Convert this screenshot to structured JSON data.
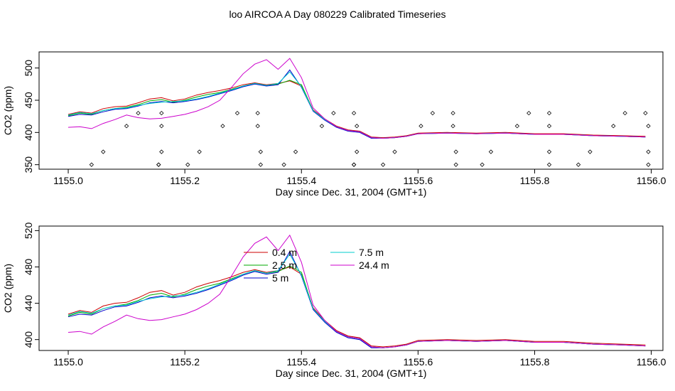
{
  "title": "loo AIRCOA A  Day 080229  Calibrated Timeseries",
  "chart_data": [
    {
      "type": "line",
      "xlabel": "Day since Dec. 31, 2004 (GMT+1)",
      "ylabel": "CO2 (ppm)",
      "xlim": [
        1154.95,
        1156.02
      ],
      "ylim": [
        343,
        525
      ],
      "xticks": [
        "1155.0",
        "1155.2",
        "1155.4",
        "1155.6",
        "1155.8",
        "1156.0"
      ],
      "yticks": [
        "350",
        "400",
        "450",
        "500"
      ],
      "series": [
        {
          "color": "#cc0000",
          "x": [
            1155.0,
            1155.02,
            1155.04,
            1155.06,
            1155.08,
            1155.1,
            1155.12,
            1155.14,
            1155.16,
            1155.18,
            1155.2,
            1155.22,
            1155.24,
            1155.26,
            1155.28,
            1155.3,
            1155.32,
            1155.34,
            1155.36,
            1155.38,
            1155.4,
            1155.42,
            1155.44,
            1155.46,
            1155.48,
            1155.5,
            1155.52,
            1155.54,
            1155.56,
            1155.58,
            1155.6,
            1155.65,
            1155.7,
            1155.75,
            1155.8,
            1155.85,
            1155.9,
            1155.95,
            1155.99
          ],
          "y": [
            428,
            432,
            430,
            437,
            440,
            441,
            446,
            452,
            454,
            449,
            452,
            458,
            462,
            465,
            469,
            474,
            477,
            474,
            476,
            480,
            472,
            435,
            421,
            410,
            404,
            402,
            393,
            392,
            393,
            395,
            399,
            400,
            399,
            400,
            398,
            398,
            396,
            395,
            394
          ]
        },
        {
          "color": "#00aa00",
          "x": [
            1155.0,
            1155.02,
            1155.04,
            1155.06,
            1155.08,
            1155.1,
            1155.12,
            1155.14,
            1155.16,
            1155.18,
            1155.2,
            1155.22,
            1155.24,
            1155.26,
            1155.28,
            1155.3,
            1155.32,
            1155.34,
            1155.36,
            1155.38,
            1155.4,
            1155.42,
            1155.44,
            1155.46,
            1155.48,
            1155.5,
            1155.52,
            1155.54,
            1155.56,
            1155.58,
            1155.6,
            1155.65,
            1155.7,
            1155.75,
            1155.8,
            1155.85,
            1155.9,
            1155.95,
            1155.99
          ],
          "y": [
            426,
            430,
            428,
            434,
            437,
            439,
            443,
            449,
            451,
            447,
            450,
            455,
            459,
            462,
            467,
            472,
            476,
            473,
            475,
            481,
            474,
            434,
            420,
            409,
            403,
            401,
            392,
            391,
            392,
            394,
            398,
            399,
            398,
            399,
            397,
            397,
            395,
            394,
            393
          ]
        },
        {
          "color": "#0000cc",
          "x": [
            1155.0,
            1155.02,
            1155.04,
            1155.06,
            1155.08,
            1155.1,
            1155.12,
            1155.14,
            1155.16,
            1155.18,
            1155.2,
            1155.22,
            1155.24,
            1155.26,
            1155.28,
            1155.3,
            1155.32,
            1155.34,
            1155.36,
            1155.38,
            1155.4,
            1155.42,
            1155.44,
            1155.46,
            1155.48,
            1155.5,
            1155.52,
            1155.54,
            1155.56,
            1155.58,
            1155.6,
            1155.65,
            1155.7,
            1155.75,
            1155.8,
            1155.85,
            1155.9,
            1155.95,
            1155.99
          ],
          "y": [
            425,
            428,
            427,
            432,
            436,
            437,
            441,
            446,
            448,
            446,
            448,
            451,
            455,
            460,
            465,
            471,
            475,
            472,
            474,
            497,
            470,
            433,
            419,
            408,
            402,
            400,
            391,
            391,
            392,
            394,
            398,
            399,
            398,
            399,
            397,
            397,
            395,
            394,
            393
          ]
        },
        {
          "color": "#00cccc",
          "x": [
            1155.0,
            1155.02,
            1155.04,
            1155.06,
            1155.08,
            1155.1,
            1155.12,
            1155.14,
            1155.16,
            1155.18,
            1155.2,
            1155.22,
            1155.24,
            1155.26,
            1155.28,
            1155.3,
            1155.32,
            1155.34,
            1155.36,
            1155.38,
            1155.4,
            1155.42,
            1155.44,
            1155.46,
            1155.48,
            1155.5,
            1155.52,
            1155.54,
            1155.56,
            1155.58,
            1155.6,
            1155.65,
            1155.7,
            1155.75,
            1155.8,
            1155.85,
            1155.9,
            1155.95,
            1155.99
          ],
          "y": [
            427,
            431,
            429,
            434,
            437,
            438,
            442,
            445,
            447,
            448,
            449,
            452,
            456,
            461,
            466,
            472,
            476,
            473,
            476,
            494,
            471,
            434,
            420,
            409,
            403,
            401,
            392,
            391,
            392,
            394,
            398,
            399,
            398,
            399,
            397,
            397,
            395,
            394,
            393
          ]
        },
        {
          "color": "#cc00cc",
          "x": [
            1155.0,
            1155.02,
            1155.04,
            1155.06,
            1155.08,
            1155.1,
            1155.12,
            1155.14,
            1155.16,
            1155.18,
            1155.2,
            1155.22,
            1155.24,
            1155.26,
            1155.28,
            1155.3,
            1155.32,
            1155.34,
            1155.36,
            1155.38,
            1155.4,
            1155.42,
            1155.44,
            1155.46,
            1155.48,
            1155.5,
            1155.52,
            1155.54,
            1155.56,
            1155.58,
            1155.6,
            1155.65,
            1155.7,
            1155.75,
            1155.8,
            1155.85,
            1155.9,
            1155.95,
            1155.99
          ],
          "y": [
            408,
            409,
            406,
            414,
            420,
            427,
            423,
            421,
            422,
            425,
            428,
            433,
            440,
            450,
            470,
            491,
            506,
            513,
            498,
            515,
            485,
            438,
            421,
            409,
            403,
            401,
            392,
            391,
            392,
            394,
            398,
            399,
            398,
            399,
            397,
            397,
            395,
            394,
            393
          ]
        }
      ],
      "points": {
        "marker": "open-diamond",
        "x": [
          1155.04,
          1155.06,
          1155.1,
          1155.12,
          1155.155,
          1155.16,
          1155.16,
          1155.16,
          1155.155,
          1155.205,
          1155.225,
          1155.265,
          1155.29,
          1155.325,
          1155.325,
          1155.33,
          1155.33,
          1155.37,
          1155.39,
          1155.435,
          1155.455,
          1155.49,
          1155.495,
          1155.495,
          1155.49,
          1155.49,
          1155.54,
          1155.56,
          1155.605,
          1155.625,
          1155.66,
          1155.66,
          1155.665,
          1155.665,
          1155.71,
          1155.725,
          1155.77,
          1155.79,
          1155.825,
          1155.825,
          1155.825,
          1155.825,
          1155.875,
          1155.895,
          1155.935,
          1155.955,
          1155.99,
          1155.995,
          1155.995,
          1155.995
        ],
        "y": [
          350,
          370,
          410,
          430,
          350,
          370,
          410,
          430,
          350,
          350,
          370,
          410,
          430,
          430,
          410,
          370,
          350,
          350,
          370,
          410,
          430,
          430,
          410,
          370,
          350,
          350,
          350,
          370,
          410,
          430,
          430,
          410,
          370,
          350,
          350,
          370,
          410,
          430,
          430,
          410,
          370,
          350,
          350,
          370,
          410,
          430,
          430,
          410,
          370,
          350
        ]
      }
    },
    {
      "type": "line",
      "xlabel": "Day since Dec. 31, 2004 (GMT+1)",
      "ylabel": "CO2 (ppm)",
      "xlim": [
        1154.95,
        1156.02
      ],
      "ylim": [
        388,
        525
      ],
      "xticks": [
        "1155.0",
        "1155.2",
        "1155.4",
        "1155.6",
        "1155.8",
        "1156.0"
      ],
      "yticks": [
        "400",
        "440",
        "480",
        "520"
      ],
      "series": [
        {
          "name": "0.4 m",
          "color": "#cc0000",
          "x": [
            1155.0,
            1155.02,
            1155.04,
            1155.06,
            1155.08,
            1155.1,
            1155.12,
            1155.14,
            1155.16,
            1155.18,
            1155.2,
            1155.22,
            1155.24,
            1155.26,
            1155.28,
            1155.3,
            1155.32,
            1155.34,
            1155.36,
            1155.38,
            1155.4,
            1155.42,
            1155.44,
            1155.46,
            1155.48,
            1155.5,
            1155.52,
            1155.54,
            1155.56,
            1155.58,
            1155.6,
            1155.65,
            1155.7,
            1155.75,
            1155.8,
            1155.85,
            1155.9,
            1155.95,
            1155.99
          ],
          "y": [
            428,
            432,
            430,
            437,
            440,
            441,
            446,
            452,
            454,
            449,
            452,
            458,
            462,
            465,
            469,
            474,
            477,
            474,
            476,
            480,
            472,
            435,
            421,
            410,
            404,
            402,
            393,
            392,
            393,
            395,
            399,
            400,
            399,
            400,
            398,
            398,
            396,
            395,
            394
          ]
        },
        {
          "name": "2.5 m",
          "color": "#00aa00",
          "x": [
            1155.0,
            1155.02,
            1155.04,
            1155.06,
            1155.08,
            1155.1,
            1155.12,
            1155.14,
            1155.16,
            1155.18,
            1155.2,
            1155.22,
            1155.24,
            1155.26,
            1155.28,
            1155.3,
            1155.32,
            1155.34,
            1155.36,
            1155.38,
            1155.4,
            1155.42,
            1155.44,
            1155.46,
            1155.48,
            1155.5,
            1155.52,
            1155.54,
            1155.56,
            1155.58,
            1155.6,
            1155.65,
            1155.7,
            1155.75,
            1155.8,
            1155.85,
            1155.9,
            1155.95,
            1155.99
          ],
          "y": [
            426,
            430,
            428,
            434,
            437,
            439,
            443,
            449,
            451,
            447,
            450,
            455,
            459,
            462,
            467,
            472,
            476,
            473,
            475,
            481,
            474,
            434,
            420,
            409,
            403,
            401,
            392,
            391,
            392,
            394,
            398,
            399,
            398,
            399,
            397,
            397,
            395,
            394,
            393
          ]
        },
        {
          "name": "5 m",
          "color": "#0000cc",
          "x": [
            1155.0,
            1155.02,
            1155.04,
            1155.06,
            1155.08,
            1155.1,
            1155.12,
            1155.14,
            1155.16,
            1155.18,
            1155.2,
            1155.22,
            1155.24,
            1155.26,
            1155.28,
            1155.3,
            1155.32,
            1155.34,
            1155.36,
            1155.38,
            1155.4,
            1155.42,
            1155.44,
            1155.46,
            1155.48,
            1155.5,
            1155.52,
            1155.54,
            1155.56,
            1155.58,
            1155.6,
            1155.65,
            1155.7,
            1155.75,
            1155.8,
            1155.85,
            1155.9,
            1155.95,
            1155.99
          ],
          "y": [
            425,
            428,
            427,
            432,
            436,
            437,
            441,
            446,
            448,
            446,
            448,
            451,
            455,
            460,
            465,
            471,
            475,
            472,
            474,
            497,
            470,
            433,
            419,
            408,
            402,
            400,
            391,
            391,
            392,
            394,
            398,
            399,
            398,
            399,
            397,
            397,
            395,
            394,
            393
          ]
        },
        {
          "name": "7.5 m",
          "color": "#00cccc",
          "x": [
            1155.0,
            1155.02,
            1155.04,
            1155.06,
            1155.08,
            1155.1,
            1155.12,
            1155.14,
            1155.16,
            1155.18,
            1155.2,
            1155.22,
            1155.24,
            1155.26,
            1155.28,
            1155.3,
            1155.32,
            1155.34,
            1155.36,
            1155.38,
            1155.4,
            1155.42,
            1155.44,
            1155.46,
            1155.48,
            1155.5,
            1155.52,
            1155.54,
            1155.56,
            1155.58,
            1155.6,
            1155.65,
            1155.7,
            1155.75,
            1155.8,
            1155.85,
            1155.9,
            1155.95,
            1155.99
          ],
          "y": [
            427,
            431,
            429,
            434,
            437,
            438,
            442,
            445,
            447,
            448,
            449,
            452,
            456,
            461,
            466,
            472,
            476,
            473,
            476,
            494,
            471,
            434,
            420,
            409,
            403,
            401,
            392,
            391,
            392,
            394,
            398,
            399,
            398,
            399,
            397,
            397,
            395,
            394,
            393
          ]
        },
        {
          "name": "24.4 m",
          "color": "#cc00cc",
          "x": [
            1155.0,
            1155.02,
            1155.04,
            1155.06,
            1155.08,
            1155.1,
            1155.12,
            1155.14,
            1155.16,
            1155.18,
            1155.2,
            1155.22,
            1155.24,
            1155.26,
            1155.28,
            1155.3,
            1155.32,
            1155.34,
            1155.36,
            1155.38,
            1155.4,
            1155.42,
            1155.44,
            1155.46,
            1155.48,
            1155.5,
            1155.52,
            1155.54,
            1155.56,
            1155.58,
            1155.6,
            1155.65,
            1155.7,
            1155.75,
            1155.8,
            1155.85,
            1155.9,
            1155.95,
            1155.99
          ],
          "y": [
            408,
            409,
            406,
            414,
            420,
            427,
            423,
            421,
            422,
            425,
            428,
            433,
            440,
            450,
            470,
            491,
            506,
            513,
            498,
            515,
            485,
            438,
            421,
            409,
            403,
            401,
            392,
            391,
            392,
            394,
            398,
            399,
            398,
            399,
            397,
            397,
            395,
            394,
            393
          ]
        }
      ],
      "legend": {
        "placement": "top-center",
        "columns": 2
      }
    }
  ]
}
